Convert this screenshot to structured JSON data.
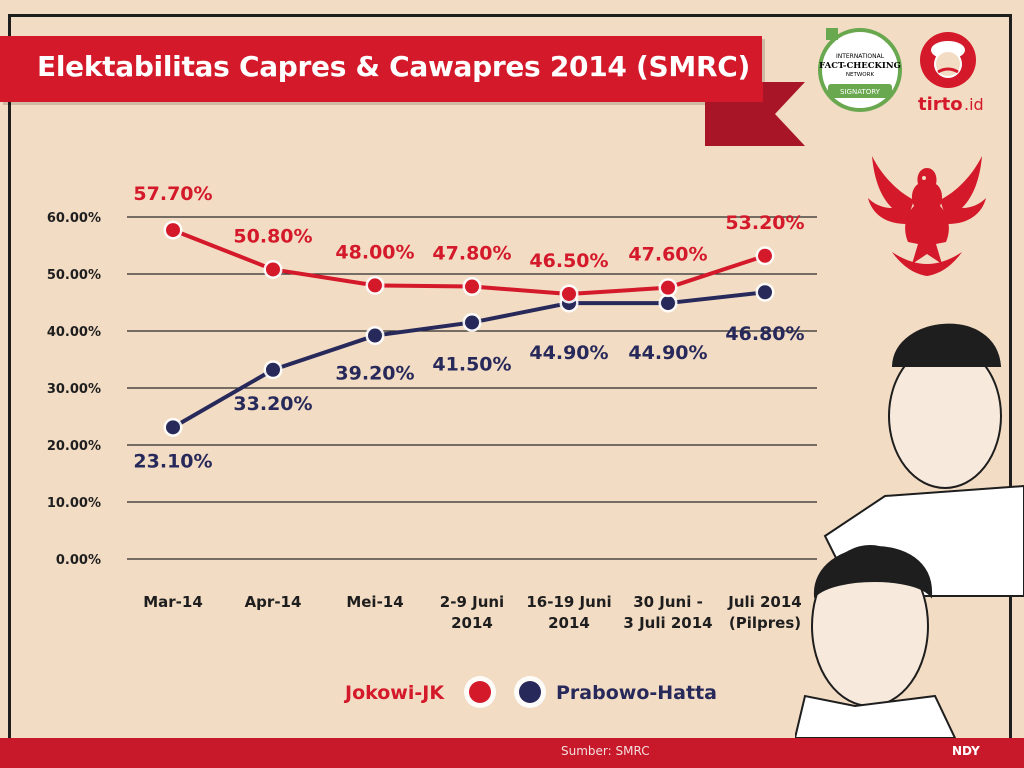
{
  "title": "Elektabilitas Capres & Cawapres 2014 (SMRC)",
  "source": "Sumber: SMRC",
  "credit": "NDY",
  "logos": {
    "factcheck_line1": "INTERNATIONAL",
    "factcheck_line2": "FACT-CHECKING",
    "factcheck_line3": "NETWORK",
    "factcheck_signatory": "SIGNATORY",
    "tirto": "tirto",
    "tirto_suffix": ".id"
  },
  "colors": {
    "background": "#f3dcc4",
    "accent_red": "#d3192a",
    "jokowi": "#d3192a",
    "prabowo": "#27295a",
    "grid": "#2a2a2a"
  },
  "chart_data": {
    "type": "line",
    "categories": [
      "Mar-14",
      "Apr-14",
      "Mei-14",
      "2-9 Juni 2014",
      "16-19 Juni 2014",
      "30 Juni - 3 Juli 2014",
      "Juli 2014 (Pilpres)"
    ],
    "category_lines": [
      [
        "Mar-14"
      ],
      [
        "Apr-14"
      ],
      [
        "Mei-14"
      ],
      [
        "2-9 Juni",
        "2014"
      ],
      [
        "16-19 Juni",
        "2014"
      ],
      [
        "30 Juni -",
        "3 Juli 2014"
      ],
      [
        "Juli 2014",
        "(Pilpres)"
      ]
    ],
    "series": [
      {
        "name": "Jokowi-JK",
        "color": "#d3192a",
        "values": [
          57.7,
          50.8,
          48.0,
          47.8,
          46.5,
          47.6,
          53.2
        ],
        "labels": [
          "57.70%",
          "50.80%",
          "48.00%",
          "47.80%",
          "46.50%",
          "47.60%",
          "53.20%"
        ]
      },
      {
        "name": "Prabowo-Hatta",
        "color": "#27295a",
        "values": [
          23.1,
          33.2,
          39.2,
          41.5,
          44.9,
          44.9,
          46.8
        ],
        "labels": [
          "23.10%",
          "33.20%",
          "39.20%",
          "41.50%",
          "44.90%",
          "44.90%",
          "46.80%"
        ]
      }
    ],
    "ylim": [
      0,
      60
    ],
    "yticks": [
      0,
      10,
      20,
      30,
      40,
      50,
      60
    ],
    "ytick_labels": [
      "0.00%",
      "10.00%",
      "20.00%",
      "30.00%",
      "40.00%",
      "50.00%",
      "60.00%"
    ],
    "grid": true,
    "legend_position": "bottom"
  }
}
